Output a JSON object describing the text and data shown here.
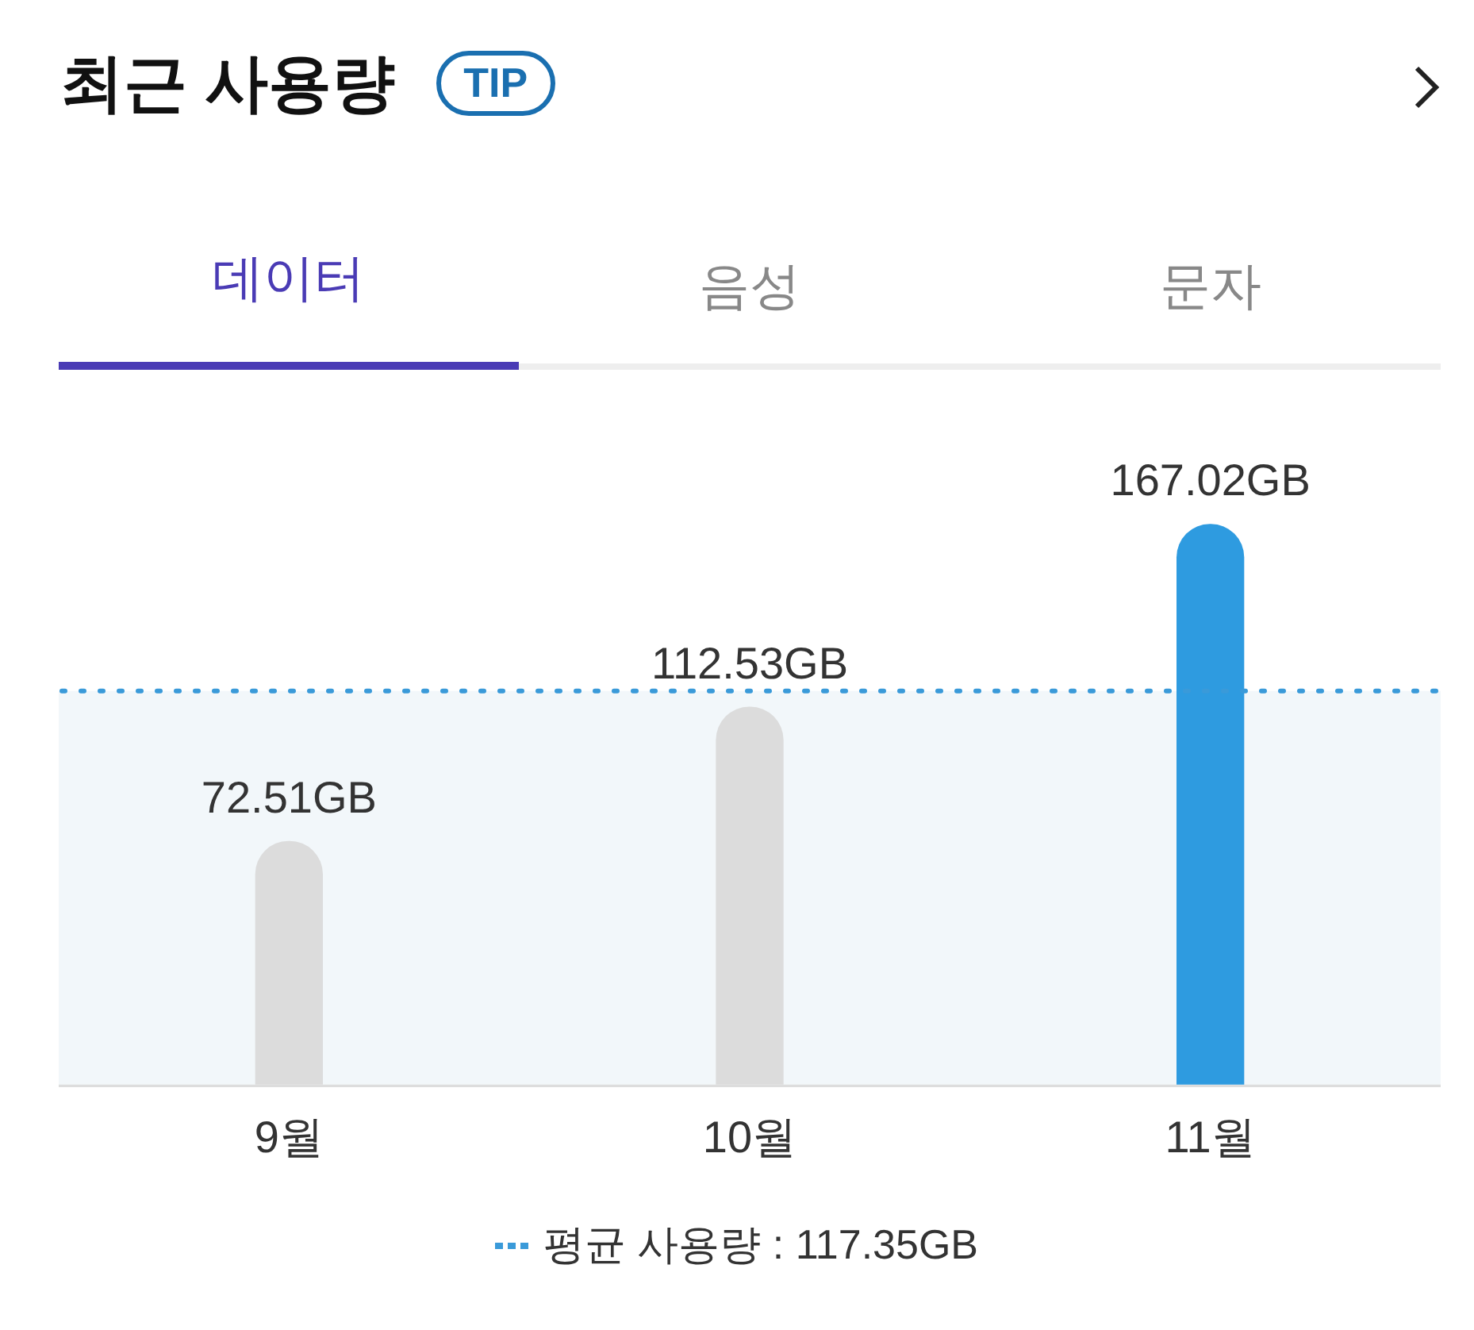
{
  "chart_data": {
    "type": "bar",
    "title": "최근 사용량",
    "annotations": [
      "TIP",
      "데이터",
      "음성",
      "문자"
    ],
    "categories": [
      "9월",
      "10월",
      "11월"
    ],
    "values": [
      72.51,
      112.53,
      167.02
    ],
    "colors": [
      "#dcdcdc",
      "#dcdcdc",
      "#2e9be0"
    ],
    "value_labels": [
      "72.51GB",
      "112.53GB",
      "167.02GB"
    ],
    "ref_lines": [
      {
        "axis": "y",
        "value": 117.35,
        "label": "평균 사용량 : 117.35GB",
        "color": "#3a9ad9",
        "line_style": "dotted"
      }
    ],
    "bands": [
      {
        "axis": "y",
        "from": 0,
        "to": 117.35,
        "color": "#f2f7fa"
      }
    ],
    "grid": false,
    "legend": "bottom",
    "tick_labels": "x"
  }
}
